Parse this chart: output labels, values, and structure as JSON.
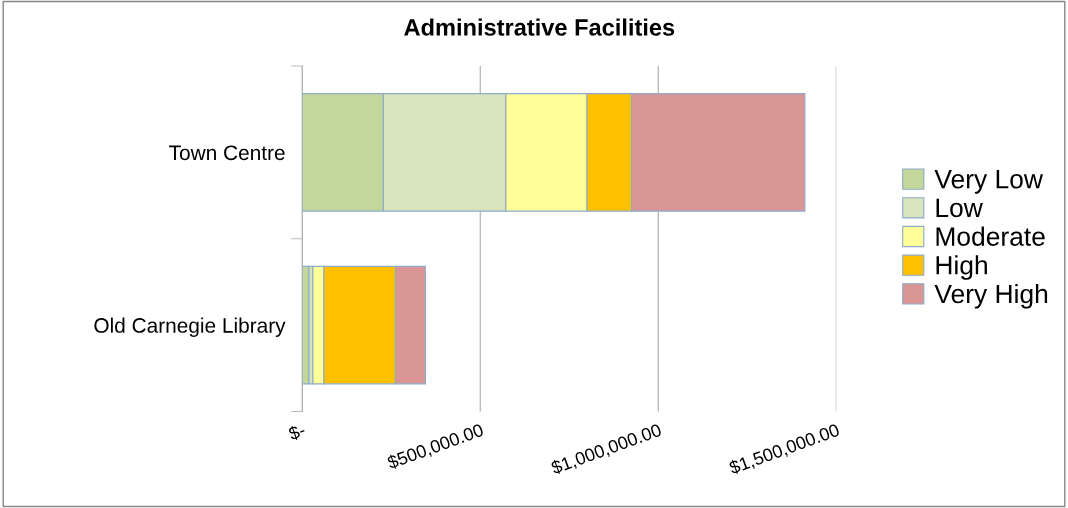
{
  "chart_data": {
    "type": "bar",
    "title": "Administrative Facilities",
    "orientation": "horizontal",
    "stacked": true,
    "categories": [
      "Town Centre",
      "Old Carnegie Library"
    ],
    "series": [
      {
        "name": "Very Low",
        "color": "#c4d79b",
        "values": [
          228000,
          19000
        ]
      },
      {
        "name": "Low",
        "color": "#d8e4bc",
        "values": [
          344000,
          11000
        ]
      },
      {
        "name": "Moderate",
        "color": "#ffff99",
        "values": [
          228000,
          31000
        ]
      },
      {
        "name": "High",
        "color": "#ffc000",
        "values": [
          125000,
          201000
        ]
      },
      {
        "name": "Very High",
        "color": "#da9694",
        "values": [
          487000,
          84000
        ]
      }
    ],
    "xlim": [
      0,
      1500000
    ],
    "xticks": [
      {
        "value": 0,
        "label": "$-"
      },
      {
        "value": 500000,
        "label": "$500,000.00"
      },
      {
        "value": 1000000,
        "label": "$1,000,000.00"
      },
      {
        "value": 1500000,
        "label": "$1,500,000.00"
      }
    ],
    "grid": "x",
    "legend": "right"
  }
}
